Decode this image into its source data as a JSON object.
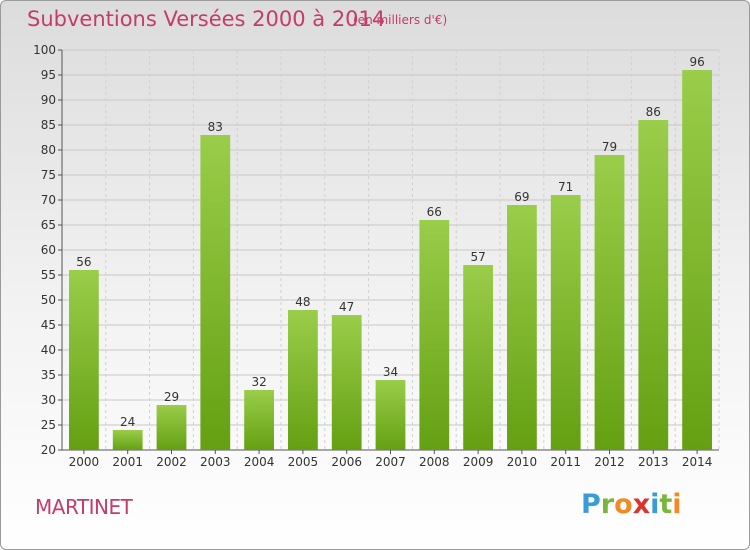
{
  "header": {
    "title": "Subventions Versées 2000 à 2014",
    "unit": "(en milliers d'€)"
  },
  "footer": {
    "commune": "MARTINET",
    "logo_letters": [
      {
        "char": "P",
        "color": "#3a9bd5"
      },
      {
        "char": "r",
        "color": "#7ab63c"
      },
      {
        "char": "o",
        "color": "#f08a24"
      },
      {
        "char": "x",
        "color": "#d9342b"
      },
      {
        "char": "i",
        "color": "#3a9bd5"
      },
      {
        "char": "t",
        "color": "#7ab63c"
      },
      {
        "char": "i",
        "color": "#f08a24"
      }
    ]
  },
  "chart_data": {
    "type": "bar",
    "categories": [
      "2000",
      "2001",
      "2002",
      "2003",
      "2004",
      "2005",
      "2006",
      "2007",
      "2008",
      "2009",
      "2010",
      "2011",
      "2012",
      "2013",
      "2014"
    ],
    "values": [
      56,
      24,
      29,
      83,
      32,
      48,
      47,
      34,
      66,
      57,
      69,
      71,
      79,
      86,
      96
    ],
    "ylim": [
      20,
      100
    ],
    "yticks": [
      20,
      25,
      30,
      35,
      40,
      45,
      50,
      55,
      60,
      65,
      70,
      75,
      80,
      85,
      90,
      95,
      100
    ],
    "grid": true,
    "bar_color_top": "#9acd4a",
    "bar_color_bottom": "#64a012"
  }
}
